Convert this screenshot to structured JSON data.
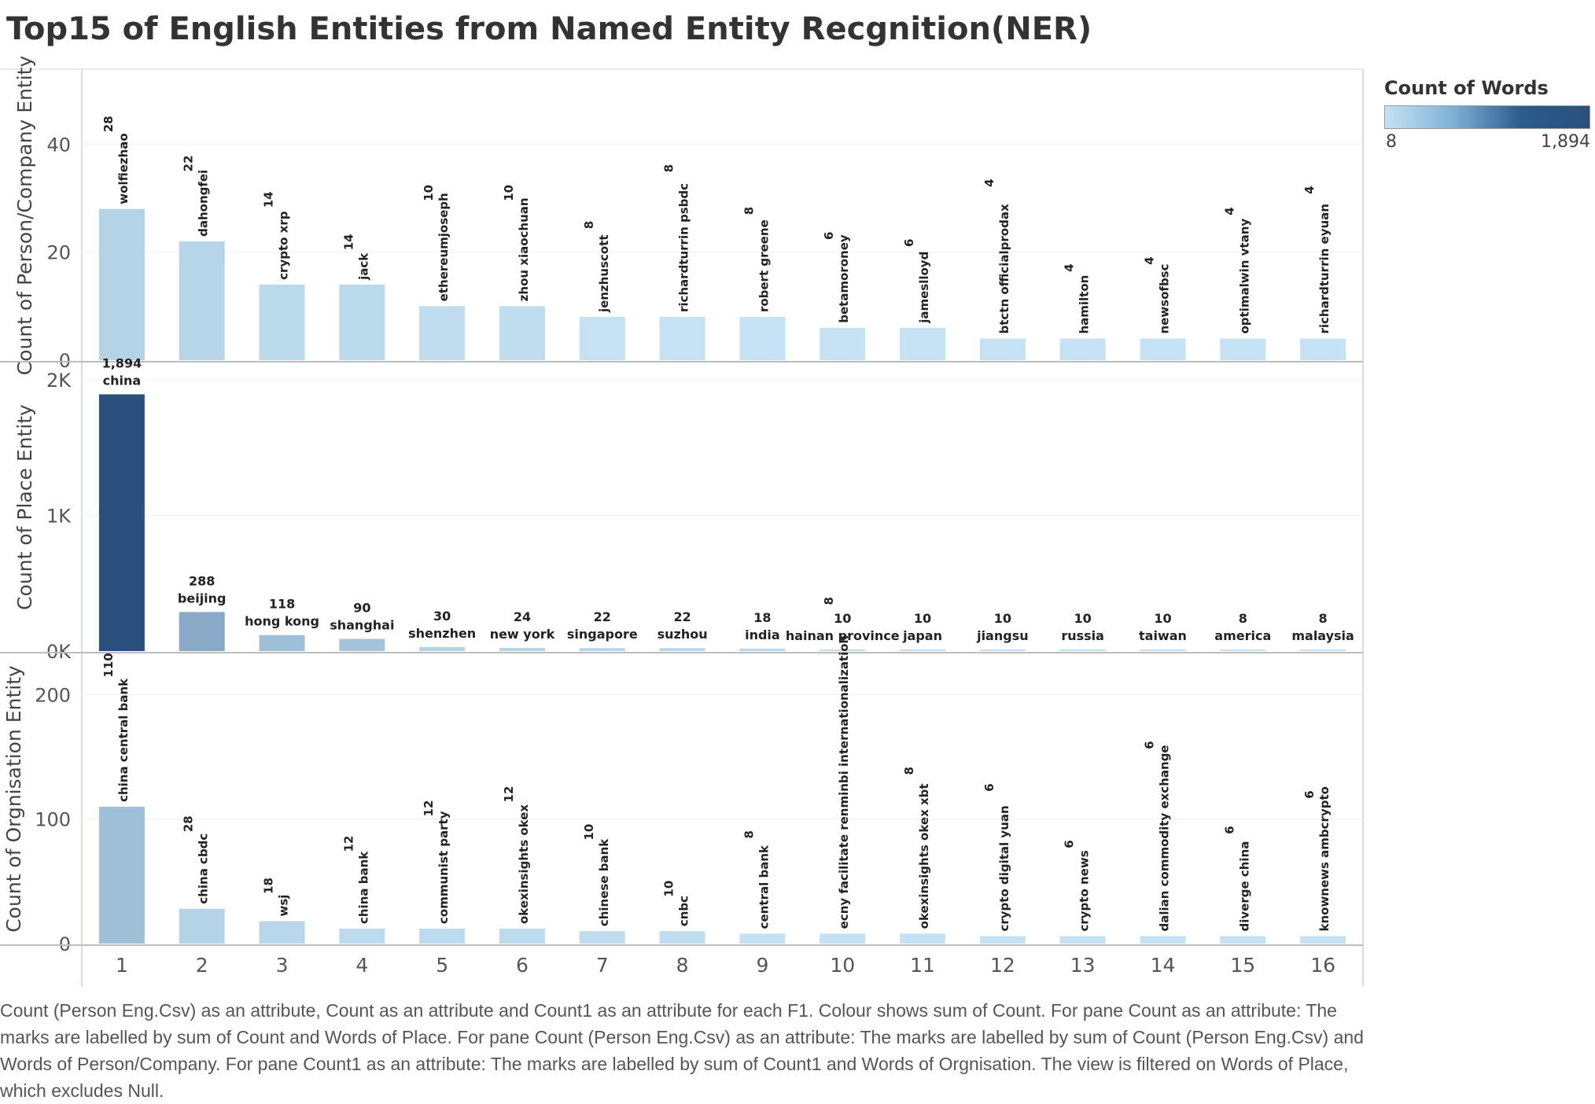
{
  "title": "Top15 of English Entities from Named Entity Recgnition(NER)",
  "legend": {
    "title": "Count of Words",
    "min_label": "8",
    "max_label": "1,894",
    "min": 8,
    "max": 1894,
    "colors": [
      "#c4e2f3",
      "#2b4f7d"
    ]
  },
  "x_ticks": [
    "1",
    "2",
    "3",
    "4",
    "5",
    "6",
    "7",
    "8",
    "9",
    "10",
    "11",
    "12",
    "13",
    "14",
    "15",
    "16"
  ],
  "caption": "Count (Person Eng.Csv) as an attribute, Count as an attribute and Count1 as an attribute for each F1.  Colour shows sum of Count.  For pane Count as an attribute:  The marks are labelled by sum of Count and Words of Place.  For pane Count (Person Eng.Csv) as an attribute:  The marks are labelled by sum of Count (Person Eng.Csv) and Words of Person/Company.  For pane Count1 as an attribute:  The marks are labelled by sum of Count1 and Words of Orgnisation. The view is filtered on Words of Place, which excludes Null.",
  "chart_data": [
    {
      "type": "bar",
      "ylabel": "Count of Person/Company Entity",
      "ylim": [
        0,
        53
      ],
      "yticks": [
        0,
        20,
        40
      ],
      "ytick_labels": [
        "0",
        "20",
        "40"
      ],
      "categories": [
        1,
        2,
        3,
        4,
        5,
        6,
        7,
        8,
        9,
        10,
        11,
        12,
        13,
        14,
        15,
        16
      ],
      "values": [
        28,
        22,
        14,
        14,
        10,
        10,
        8,
        8,
        8,
        6,
        6,
        4,
        4,
        4,
        4,
        4
      ],
      "value_labels": [
        "28",
        "22",
        "14",
        "14",
        "10",
        "10",
        "8",
        "8",
        "8",
        "6",
        "6",
        "4",
        "4",
        "4",
        "4",
        "4"
      ],
      "words": [
        "wolfiezhao",
        "dahongfei",
        "crypto xrp",
        "jack",
        "ethereumjoseph",
        "zhou xiaochuan",
        "jenzhuscott",
        "richardturrin psbdc",
        "robert greene",
        "betamoroney",
        "jameslloyd",
        "btctn officialprodax",
        "hamilton",
        "newsofbsc",
        "optimalwin vtany",
        "richardturrin eyuan"
      ],
      "label_orientation": "vertical"
    },
    {
      "type": "bar",
      "ylabel": "Count of Place Entity",
      "ylim": [
        0,
        2100
      ],
      "yticks": [
        0,
        1000,
        2000
      ],
      "ytick_labels": [
        "0K",
        "1K",
        "2K"
      ],
      "categories": [
        1,
        2,
        3,
        4,
        5,
        6,
        7,
        8,
        9,
        10,
        11,
        12,
        13,
        14,
        15,
        16
      ],
      "values": [
        1894,
        288,
        118,
        90,
        30,
        24,
        22,
        22,
        18,
        10,
        10,
        10,
        10,
        10,
        8,
        8
      ],
      "value_labels": [
        "1,894",
        "288",
        "118",
        "90",
        "30",
        "24",
        "22",
        "22",
        "18",
        "10",
        "10",
        "10",
        "10",
        "10",
        "8",
        "8"
      ],
      "words": [
        "china",
        "beijing",
        "hong kong",
        "shanghai",
        "shenzhen",
        "new york",
        "singapore",
        "suzhou",
        "india",
        "hainan province",
        "japan",
        "jiangsu",
        "russia",
        "taiwan",
        "america",
        "malaysia"
      ],
      "label_orientation": "horizontal"
    },
    {
      "type": "bar",
      "ylabel": "Count of Orgnisation Entity",
      "ylim": [
        0,
        230
      ],
      "yticks": [
        0,
        100,
        200
      ],
      "ytick_labels": [
        "0",
        "100",
        "200"
      ],
      "categories": [
        1,
        2,
        3,
        4,
        5,
        6,
        7,
        8,
        9,
        10,
        11,
        12,
        13,
        14,
        15,
        16
      ],
      "values": [
        110,
        28,
        18,
        12,
        12,
        12,
        10,
        10,
        8,
        8,
        8,
        6,
        6,
        6,
        6,
        6
      ],
      "value_labels": [
        "110",
        "28",
        "18",
        "12",
        "12",
        "12",
        "10",
        "10",
        "8",
        "8",
        "8",
        "6",
        "6",
        "6",
        "6",
        "6"
      ],
      "words": [
        "china central bank",
        "china cbdc",
        "wsj",
        "china bank",
        "communist party",
        "okexinsights okex",
        "chinese bank",
        "cnbc",
        "central bank",
        "ecny facilitate renminbi internationalization",
        "okexinsights okex xbt",
        "crypto digital yuan",
        "crypto news",
        "dalian commodity exchange",
        "diverge china",
        "knownews ambcrypto"
      ],
      "label_orientation": "vertical"
    }
  ]
}
